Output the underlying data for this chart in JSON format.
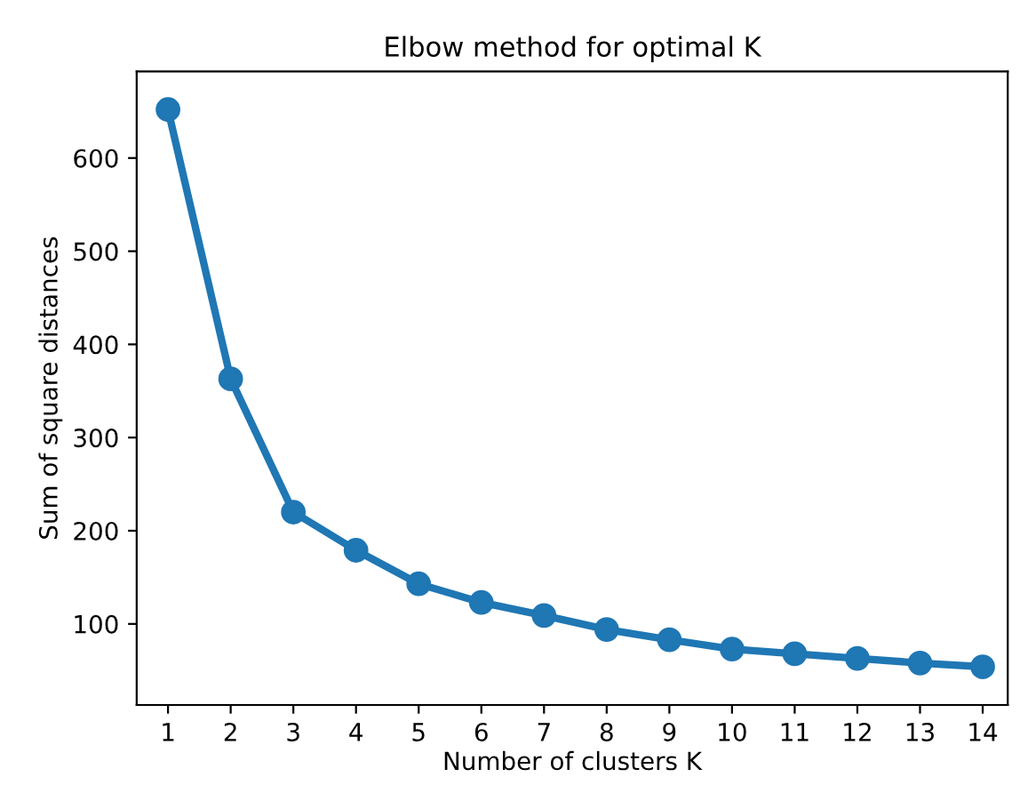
{
  "chart_data": {
    "type": "line",
    "title": "Elbow method for optimal K",
    "xlabel": "Number of clusters K",
    "ylabel": "Sum of square distances",
    "x": [
      1,
      2,
      3,
      4,
      5,
      6,
      7,
      8,
      9,
      10,
      11,
      12,
      13,
      14
    ],
    "series": [
      {
        "color": "#1f77b4",
        "values": [
          652,
          363,
          220,
          179,
          143,
          123,
          109,
          94,
          83,
          73,
          68,
          63,
          58,
          54
        ]
      }
    ],
    "xlim": [
      0.5,
      14.4
    ],
    "ylim": [
      13,
      693
    ],
    "xticks": [
      1,
      2,
      3,
      4,
      5,
      6,
      7,
      8,
      9,
      10,
      11,
      12,
      13,
      14
    ],
    "yticks": [
      100,
      200,
      300,
      400,
      500,
      600
    ],
    "marker": "circle",
    "line_style": "solid",
    "grid": false,
    "legend": false
  }
}
